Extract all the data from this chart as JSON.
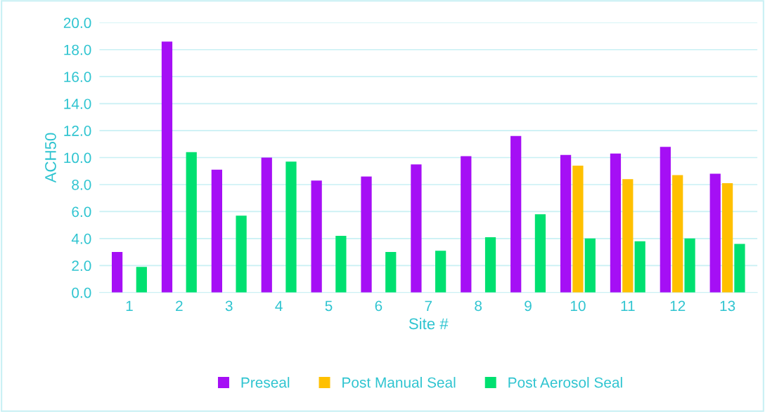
{
  "chart_data": {
    "type": "bar",
    "xlabel": "Site #",
    "ylabel": "ACH50",
    "categories": [
      "1",
      "2",
      "3",
      "4",
      "5",
      "6",
      "7",
      "8",
      "9",
      "10",
      "11",
      "12",
      "13"
    ],
    "series": [
      {
        "name": "Preseal",
        "color": "#a50ff5",
        "values": [
          3.0,
          18.6,
          9.1,
          10.0,
          8.3,
          8.6,
          9.5,
          10.1,
          11.6,
          10.2,
          10.3,
          10.8,
          8.8
        ]
      },
      {
        "name": "Post Manual Seal",
        "color": "#ffc000",
        "values": [
          null,
          null,
          null,
          null,
          null,
          null,
          null,
          null,
          null,
          9.4,
          8.4,
          8.7,
          8.1
        ]
      },
      {
        "name": "Post Aerosol Seal",
        "color": "#00e070",
        "values": [
          1.9,
          10.4,
          5.7,
          9.7,
          4.2,
          3.0,
          3.1,
          4.1,
          5.8,
          4.0,
          3.8,
          4.0,
          3.6
        ]
      }
    ],
    "ylim": [
      0,
      20
    ],
    "yticks": [
      {
        "value": 0,
        "label": "0.0"
      },
      {
        "value": 2,
        "label": "2.0"
      },
      {
        "value": 4,
        "label": "4.0"
      },
      {
        "value": 6,
        "label": "6.0"
      },
      {
        "value": 8,
        "label": "8.0"
      },
      {
        "value": 10,
        "label": "10.0"
      },
      {
        "value": 12,
        "label": "12.0"
      },
      {
        "value": 14,
        "label": "14.0"
      },
      {
        "value": 16,
        "label": "16.0"
      },
      {
        "value": 18,
        "label": "18.0"
      },
      {
        "value": 20,
        "label": "20.0"
      }
    ],
    "grid": "y",
    "legend": "bottom"
  }
}
